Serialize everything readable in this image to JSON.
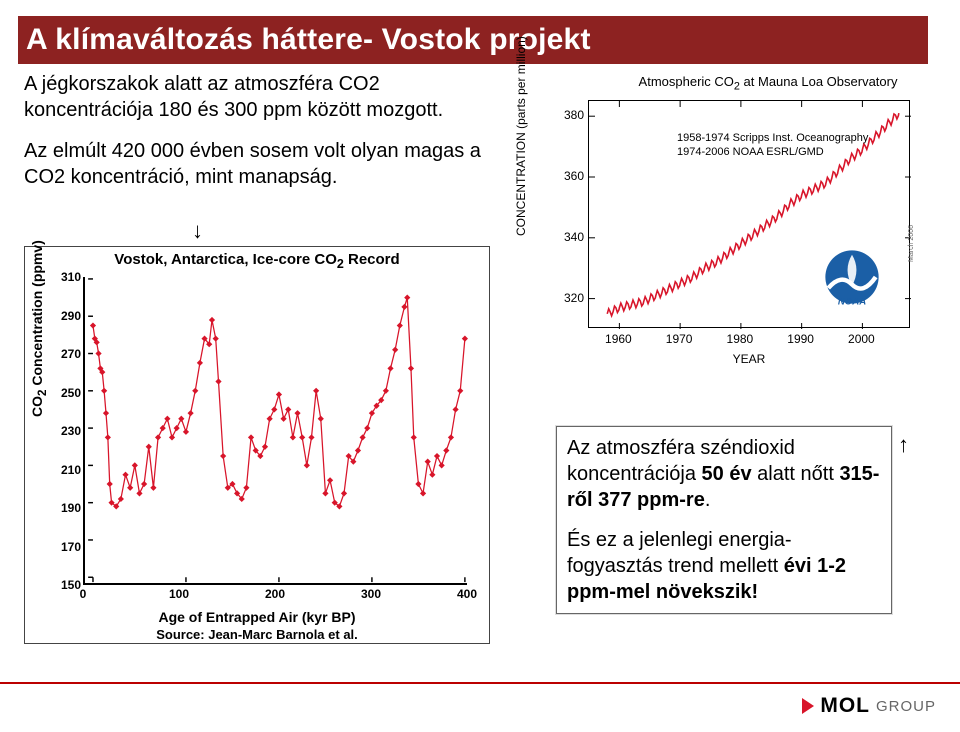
{
  "title": "A klímaváltozás háttere- Vostok projekt",
  "intro": {
    "p1": "A jégkorszakok alatt az atmoszféra CO2 koncentrációja 180 és 300 ppm között mozgott.",
    "p2": "Az elmúlt 420 000 évben sosem volt olyan magas a CO2 koncentráció, mint manapság."
  },
  "vostok": {
    "title_pre": "Vostok, Antarctica, Ice-core CO",
    "title_sub": "2",
    "title_post": " Record",
    "ylabel_pre": "CO",
    "ylabel_sub": "2",
    "ylabel_post": " Concentration (ppmv)",
    "xlabel": "Age of Entrapped Air (kyr BP)",
    "source": "Source: Jean-Marc Barnola et al.",
    "ylim": [
      150,
      310
    ],
    "xlim": [
      0,
      400
    ],
    "yticks": [
      150,
      170,
      190,
      210,
      230,
      250,
      270,
      290,
      310
    ],
    "xticks": [
      0,
      100,
      200,
      300,
      400
    ],
    "line_color": "#d8152a",
    "marker_color": "#d8152a",
    "background_color": "#ffffff",
    "series": [
      [
        0,
        285
      ],
      [
        2,
        278
      ],
      [
        4,
        276
      ],
      [
        6,
        270
      ],
      [
        8,
        262
      ],
      [
        10,
        260
      ],
      [
        12,
        250
      ],
      [
        14,
        238
      ],
      [
        16,
        225
      ],
      [
        18,
        200
      ],
      [
        20,
        190
      ],
      [
        25,
        188
      ],
      [
        30,
        192
      ],
      [
        35,
        205
      ],
      [
        40,
        198
      ],
      [
        45,
        210
      ],
      [
        50,
        195
      ],
      [
        55,
        200
      ],
      [
        60,
        220
      ],
      [
        65,
        198
      ],
      [
        70,
        225
      ],
      [
        75,
        230
      ],
      [
        80,
        235
      ],
      [
        85,
        225
      ],
      [
        90,
        230
      ],
      [
        95,
        235
      ],
      [
        100,
        228
      ],
      [
        105,
        238
      ],
      [
        110,
        250
      ],
      [
        115,
        265
      ],
      [
        120,
        278
      ],
      [
        125,
        275
      ],
      [
        128,
        288
      ],
      [
        132,
        278
      ],
      [
        135,
        255
      ],
      [
        140,
        215
      ],
      [
        145,
        198
      ],
      [
        150,
        200
      ],
      [
        155,
        195
      ],
      [
        160,
        192
      ],
      [
        165,
        198
      ],
      [
        170,
        225
      ],
      [
        175,
        218
      ],
      [
        180,
        215
      ],
      [
        185,
        220
      ],
      [
        190,
        235
      ],
      [
        195,
        240
      ],
      [
        200,
        248
      ],
      [
        205,
        235
      ],
      [
        210,
        240
      ],
      [
        215,
        225
      ],
      [
        220,
        238
      ],
      [
        225,
        225
      ],
      [
        230,
        210
      ],
      [
        235,
        225
      ],
      [
        240,
        250
      ],
      [
        245,
        235
      ],
      [
        250,
        195
      ],
      [
        255,
        202
      ],
      [
        260,
        190
      ],
      [
        265,
        188
      ],
      [
        270,
        195
      ],
      [
        275,
        215
      ],
      [
        280,
        212
      ],
      [
        285,
        218
      ],
      [
        290,
        225
      ],
      [
        295,
        230
      ],
      [
        300,
        238
      ],
      [
        305,
        242
      ],
      [
        310,
        245
      ],
      [
        315,
        250
      ],
      [
        320,
        262
      ],
      [
        325,
        272
      ],
      [
        330,
        285
      ],
      [
        335,
        295
      ],
      [
        338,
        300
      ],
      [
        342,
        262
      ],
      [
        345,
        225
      ],
      [
        350,
        200
      ],
      [
        355,
        195
      ],
      [
        360,
        212
      ],
      [
        365,
        205
      ],
      [
        370,
        215
      ],
      [
        375,
        210
      ],
      [
        380,
        218
      ],
      [
        385,
        225
      ],
      [
        390,
        240
      ],
      [
        395,
        250
      ],
      [
        400,
        278
      ]
    ]
  },
  "ml": {
    "title_pre": "Atmospheric CO",
    "title_sub": "2",
    "title_post": " at Mauna Loa Observatory",
    "ylabel": "CONCENTRATION (parts per million)",
    "xlabel": "YEAR",
    "legend1": "1958-1974 Scripps Inst. Oceanography",
    "legend2": "1974-2006 NOAA ESRL/GMD",
    "credit": "March 2006",
    "ylim": [
      310,
      385
    ],
    "xlim": [
      1955,
      2008
    ],
    "yticks": [
      320,
      340,
      360,
      380
    ],
    "xticks": [
      1960,
      1970,
      1980,
      1990,
      2000
    ],
    "line_color": "#d8152a",
    "background_color": "#ffffff",
    "series": [
      [
        1958,
        315
      ],
      [
        1960,
        317
      ],
      [
        1962,
        318
      ],
      [
        1964,
        319
      ],
      [
        1966,
        321
      ],
      [
        1968,
        323
      ],
      [
        1970,
        325
      ],
      [
        1972,
        327
      ],
      [
        1974,
        330
      ],
      [
        1976,
        332
      ],
      [
        1978,
        335
      ],
      [
        1980,
        338
      ],
      [
        1982,
        341
      ],
      [
        1984,
        344
      ],
      [
        1986,
        347
      ],
      [
        1988,
        351
      ],
      [
        1990,
        354
      ],
      [
        1992,
        356
      ],
      [
        1994,
        358
      ],
      [
        1996,
        362
      ],
      [
        1998,
        366
      ],
      [
        2000,
        369
      ],
      [
        2002,
        373
      ],
      [
        2004,
        377
      ],
      [
        2006,
        381
      ]
    ],
    "noaa_text": "NOAA"
  },
  "callout": {
    "p1_pre": "Az atmoszféra széndioxid koncentrációja ",
    "p1_bold1": "50  év",
    "p1_mid": " alatt nőtt ",
    "p1_bold2": "315-ről 377 ppm-re",
    "p1_post": ".",
    "p2_pre": "És ez a jelenlegi energia-fogyasztás trend mellett ",
    "p2_bold": "évi 1-2 ppm-mel növekszik!"
  },
  "logo": {
    "brand": "MOL",
    "suffix": "GROUP"
  }
}
